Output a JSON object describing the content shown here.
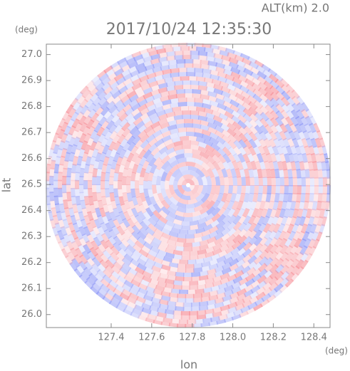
{
  "chart_data": {
    "type": "radar-ppi",
    "title": "2017/10/24 12:35:30",
    "altitude_label": "ALT(km) 2.0",
    "x_label": "lon",
    "y_label": "lat",
    "x_unit": "(deg)",
    "y_unit": "(deg)",
    "xlim": [
      127.08,
      128.48
    ],
    "ylim": [
      25.95,
      27.04
    ],
    "xticks": [
      127.4,
      127.6,
      127.8,
      {
        "value": 128,
        "label": "128.0"
      },
      128.2,
      128.4
    ],
    "yticks": [
      {
        "value": 26,
        "label": "26.0"
      },
      26.1,
      26.2,
      26.3,
      26.4,
      26.5,
      26.6,
      26.7,
      26.8,
      26.9,
      {
        "value": 27,
        "label": "27.0"
      }
    ]
  }
}
